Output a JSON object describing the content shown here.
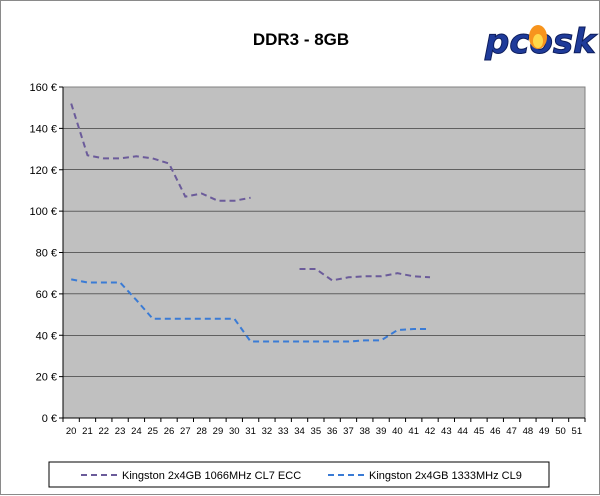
{
  "logo_text": "pcosk",
  "chart_data": {
    "type": "line",
    "title": "DDR3 - 8GB",
    "xlabel": "",
    "ylabel": "",
    "categories": [
      "20",
      "21",
      "22",
      "23",
      "24",
      "25",
      "26",
      "27",
      "28",
      "29",
      "30",
      "31",
      "32",
      "33",
      "34",
      "35",
      "36",
      "37",
      "38",
      "39",
      "40",
      "41",
      "42",
      "43",
      "44",
      "45",
      "46",
      "47",
      "48",
      "49",
      "50",
      "51"
    ],
    "ylim": [
      0,
      160
    ],
    "yticks": [
      "0 €",
      "20 €",
      "40 €",
      "60 €",
      "80 €",
      "100 €",
      "120 €",
      "140 €",
      "160 €"
    ],
    "grid": true,
    "legend_position": "bottom",
    "series": [
      {
        "name": "Kingston 2x4GB 1066MHz CL7 ECC",
        "color": "#6b5b9a",
        "dash": "dashed",
        "values": [
          152,
          127,
          125.5,
          125.5,
          126.5,
          125.5,
          123,
          107,
          108.5,
          105,
          105,
          106.5,
          null,
          null,
          72,
          72,
          66.5,
          68,
          68.5,
          68.5,
          70,
          68.5,
          68,
          null,
          null,
          null,
          null,
          null,
          null,
          null,
          null,
          null
        ]
      },
      {
        "name": "Kingston 2x4GB 1333MHz CL9",
        "color": "#3a7bd5",
        "dash": "dashed",
        "values": [
          67,
          65.5,
          65.5,
          65.5,
          57,
          48,
          48,
          48,
          48,
          48,
          48,
          37,
          37,
          37,
          37,
          37,
          37,
          37,
          37.5,
          37.5,
          42.5,
          43,
          43,
          null,
          null,
          null,
          null,
          null,
          null,
          null,
          null,
          null
        ]
      }
    ]
  }
}
